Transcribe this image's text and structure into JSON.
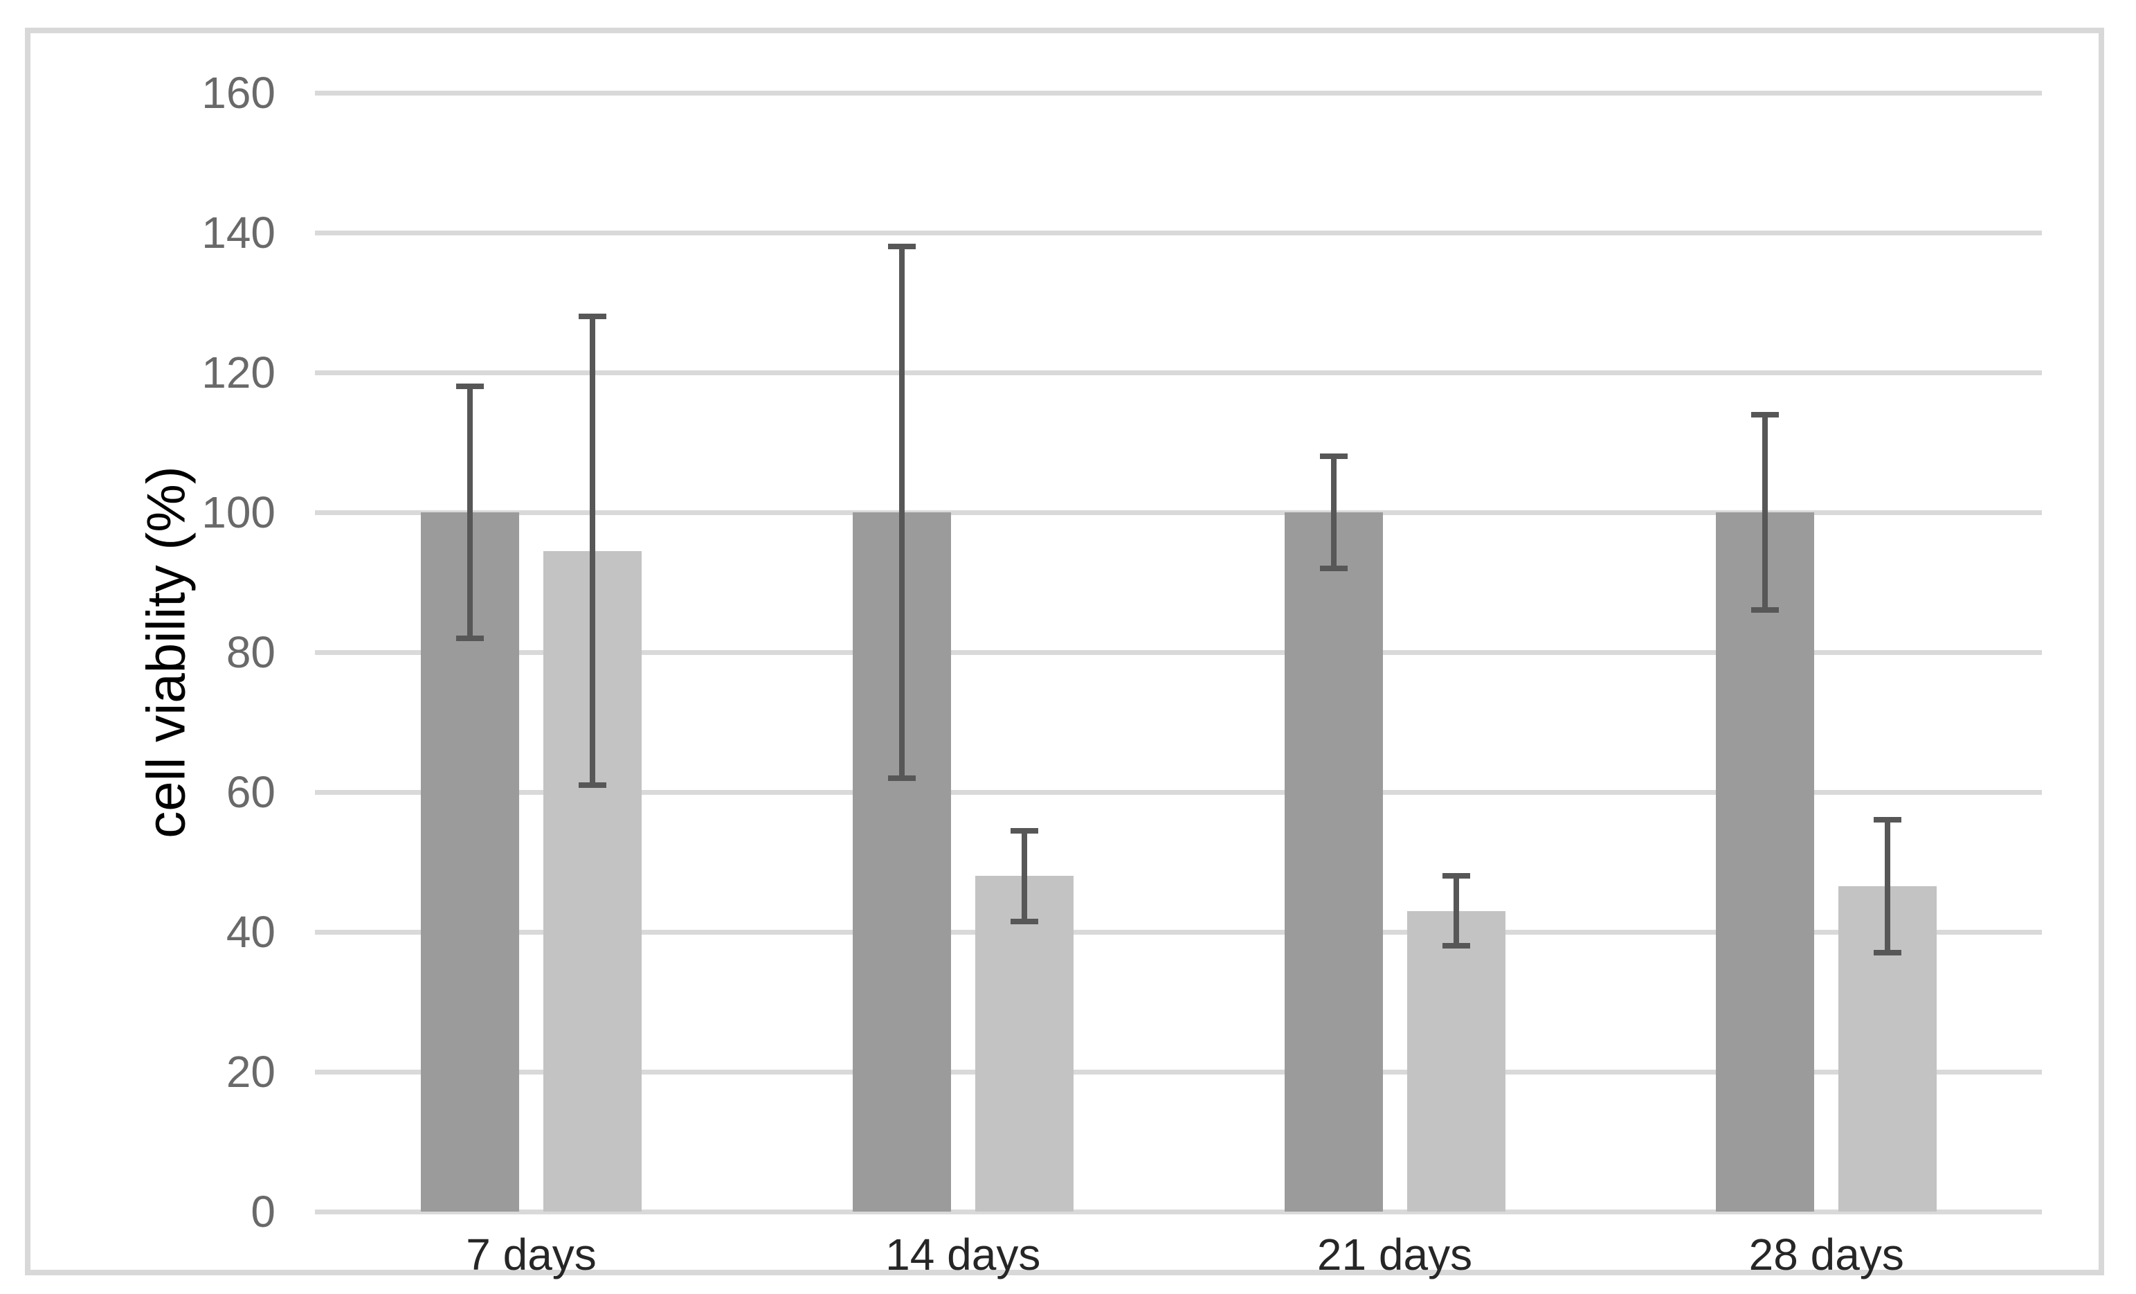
{
  "chart_data": {
    "type": "bar",
    "title": "",
    "xlabel": "",
    "ylabel": "cell viability (%)",
    "categories": [
      "7 days",
      "14 days",
      "21 days",
      "28 days"
    ],
    "series": [
      {
        "name": "dark-gray-bars",
        "color": "#9b9b9b",
        "values": [
          100,
          100,
          100,
          100
        ],
        "errors": [
          18,
          38,
          8,
          14
        ]
      },
      {
        "name": "light-gray-bars",
        "color": "#c3c3c3",
        "values": [
          94.5,
          48,
          43,
          46.5
        ],
        "errors": [
          33.5,
          6.5,
          5,
          9.5
        ]
      }
    ],
    "ylim": [
      0,
      160
    ],
    "ytick_step": 20,
    "ytick_labels": [
      "0",
      "20",
      "40",
      "60",
      "80",
      "100",
      "120",
      "140",
      "160"
    ],
    "grid": true,
    "legend": "none",
    "colors": {
      "error_bar": "#575757",
      "gridline": "#d9d9d9",
      "frame": "#d8d8d8",
      "tick_label": "#696969",
      "category_label": "#262626",
      "axis_title": "#000000"
    }
  }
}
